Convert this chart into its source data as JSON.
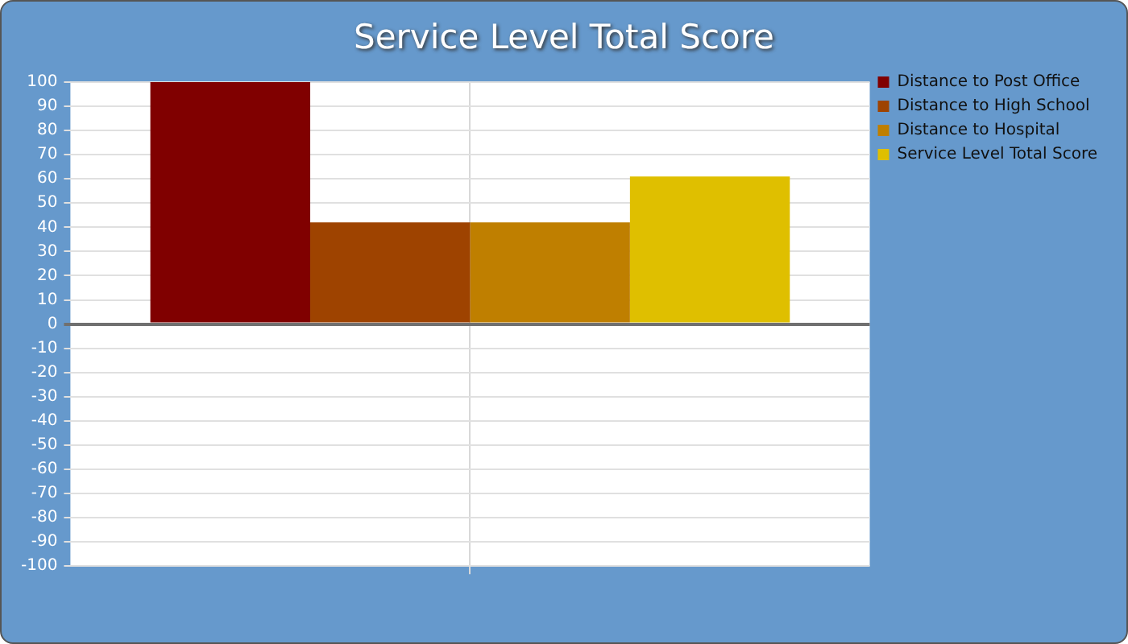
{
  "chart_data": {
    "type": "bar",
    "title": "Service Level Total Score",
    "categories": [
      null
    ],
    "series": [
      {
        "name": "Distance to Post Office",
        "color": "#800000",
        "values": [
          100
        ]
      },
      {
        "name": "Distance to High School",
        "color": "#9e4300",
        "values": [
          42
        ]
      },
      {
        "name": "Distance to Hospital",
        "color": "#bf7f00",
        "values": [
          42
        ]
      },
      {
        "name": "Service Level Total Score",
        "color": "#dfbf00",
        "values": [
          61
        ]
      }
    ],
    "ylim": [
      -100,
      100
    ],
    "yticks": [
      -100,
      -90,
      -80,
      -70,
      -60,
      -50,
      -40,
      -30,
      -20,
      -10,
      0,
      10,
      20,
      30,
      40,
      50,
      60,
      70,
      80,
      90,
      100
    ],
    "grid": true,
    "legend": "top right"
  }
}
